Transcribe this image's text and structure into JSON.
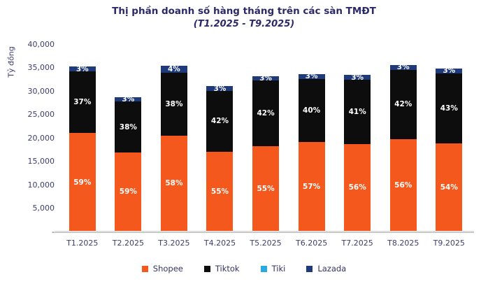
{
  "title": {
    "line1": "Thị phần doanh số hàng tháng trên các sàn TMĐT",
    "line2": "(T1.2025 - T9.2025)"
  },
  "y_axis": {
    "label": "Tỷ đồng",
    "ticks": [
      "40,000",
      "35,000",
      "30,000",
      "25,000",
      "20,000",
      "15,000",
      "10,000",
      "5,000",
      "-"
    ],
    "max_value": 40000
  },
  "chart_data": {
    "type": "bar",
    "stacked": true,
    "title": "Thị phần doanh số hàng tháng trên các sàn TMĐT (T1.2025 - T9.2025)",
    "ylabel": "Tỷ đồng",
    "ylim": [
      0,
      40000
    ],
    "grid": false,
    "legend_position": "bottom",
    "categories": [
      "T1.2025",
      "T2.2025",
      "T3.2025",
      "T4.2025",
      "T5.2025",
      "T6.2025",
      "T7.2025",
      "T8.2025",
      "T9.2025"
    ],
    "totals_ty_dong": [
      35200,
      28600,
      35300,
      31000,
      33200,
      33600,
      33400,
      35600,
      34800
    ],
    "series": [
      {
        "name": "Shopee",
        "color": "#F4581D",
        "pct": [
          59,
          59,
          58,
          55,
          55,
          57,
          56,
          56,
          54
        ]
      },
      {
        "name": "Tiktok",
        "color": "#0D0D0D",
        "pct": [
          37,
          38,
          38,
          42,
          42,
          40,
          41,
          42,
          43
        ]
      },
      {
        "name": "Tiki",
        "color": "#29ABE2",
        "pct": [
          0,
          0,
          0,
          0,
          0,
          0,
          0,
          0,
          0
        ]
      },
      {
        "name": "Lazada",
        "color": "#1E3A7B",
        "pct": [
          3,
          3,
          4,
          3,
          3,
          3,
          3,
          3,
          3
        ]
      }
    ]
  }
}
